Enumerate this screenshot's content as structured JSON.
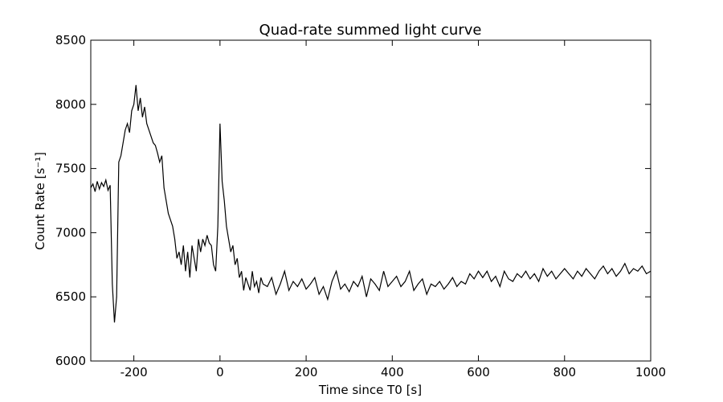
{
  "chart_data": {
    "type": "line",
    "title": "Quad-rate summed light curve",
    "x_label": "Time since T0 [s]",
    "y_label": "Count Rate [s⁻¹]",
    "xlim": [
      -300,
      1000
    ],
    "xticks": [
      -200,
      0,
      200,
      400,
      600,
      800,
      1000
    ],
    "ylim": [
      6000,
      8500
    ],
    "yticks": [
      6000,
      6500,
      7000,
      7500,
      8000,
      8500
    ],
    "series": [
      {
        "color": "#000000",
        "x": [
          -300,
          -295,
          -290,
          -285,
          -280,
          -275,
          -270,
          -265,
          -260,
          -255,
          -250,
          -245,
          -240,
          -235,
          -230,
          -225,
          -220,
          -215,
          -210,
          -205,
          -200,
          -195,
          -190,
          -185,
          -180,
          -175,
          -170,
          -165,
          -160,
          -155,
          -150,
          -145,
          -140,
          -135,
          -130,
          -125,
          -120,
          -115,
          -110,
          -105,
          -100,
          -95,
          -90,
          -85,
          -80,
          -75,
          -70,
          -65,
          -60,
          -55,
          -50,
          -45,
          -40,
          -35,
          -30,
          -25,
          -20,
          -15,
          -10,
          -5,
          0,
          5,
          10,
          15,
          20,
          25,
          30,
          35,
          40,
          45,
          50,
          55,
          60,
          65,
          70,
          75,
          80,
          85,
          90,
          95,
          100,
          110,
          120,
          130,
          140,
          150,
          160,
          170,
          180,
          190,
          200,
          210,
          220,
          230,
          240,
          250,
          260,
          270,
          280,
          290,
          300,
          310,
          320,
          330,
          340,
          350,
          360,
          370,
          380,
          390,
          400,
          410,
          420,
          430,
          440,
          450,
          460,
          470,
          480,
          490,
          500,
          510,
          520,
          530,
          540,
          550,
          560,
          570,
          580,
          590,
          600,
          610,
          620,
          630,
          640,
          650,
          660,
          670,
          680,
          690,
          700,
          710,
          720,
          730,
          740,
          750,
          760,
          770,
          780,
          790,
          800,
          810,
          820,
          830,
          840,
          850,
          860,
          870,
          880,
          890,
          900,
          910,
          920,
          930,
          940,
          950,
          960,
          970,
          980,
          990,
          1000
        ],
        "values": [
          7350,
          7380,
          7320,
          7400,
          7340,
          7390,
          7360,
          7410,
          7330,
          7370,
          6600,
          6300,
          6500,
          7550,
          7600,
          7700,
          7800,
          7850,
          7780,
          7950,
          8000,
          8150,
          7950,
          8050,
          7900,
          7980,
          7850,
          7800,
          7750,
          7700,
          7680,
          7620,
          7550,
          7600,
          7350,
          7250,
          7150,
          7100,
          7050,
          6950,
          6800,
          6850,
          6750,
          6900,
          6700,
          6850,
          6650,
          6900,
          6800,
          6700,
          6950,
          6850,
          6950,
          6900,
          6980,
          6920,
          6900,
          6750,
          6700,
          7050,
          7850,
          7400,
          7250,
          7050,
          6950,
          6850,
          6900,
          6750,
          6800,
          6650,
          6700,
          6550,
          6650,
          6600,
          6550,
          6700,
          6580,
          6620,
          6530,
          6650,
          6600,
          6580,
          6650,
          6520,
          6600,
          6700,
          6550,
          6620,
          6580,
          6640,
          6560,
          6600,
          6650,
          6520,
          6580,
          6480,
          6620,
          6700,
          6560,
          6600,
          6540,
          6620,
          6580,
          6660,
          6500,
          6640,
          6600,
          6550,
          6700,
          6580,
          6620,
          6660,
          6580,
          6620,
          6700,
          6550,
          6600,
          6640,
          6520,
          6600,
          6580,
          6620,
          6560,
          6600,
          6650,
          6580,
          6620,
          6600,
          6680,
          6640,
          6700,
          6650,
          6700,
          6620,
          6660,
          6580,
          6700,
          6640,
          6620,
          6680,
          6650,
          6700,
          6640,
          6680,
          6620,
          6720,
          6660,
          6700,
          6640,
          6680,
          6720,
          6680,
          6640,
          6700,
          6660,
          6720,
          6680,
          6640,
          6700,
          6740,
          6680,
          6720,
          6660,
          6700,
          6760,
          6680,
          6720,
          6700,
          6740,
          6680,
          6700
        ]
      }
    ]
  }
}
